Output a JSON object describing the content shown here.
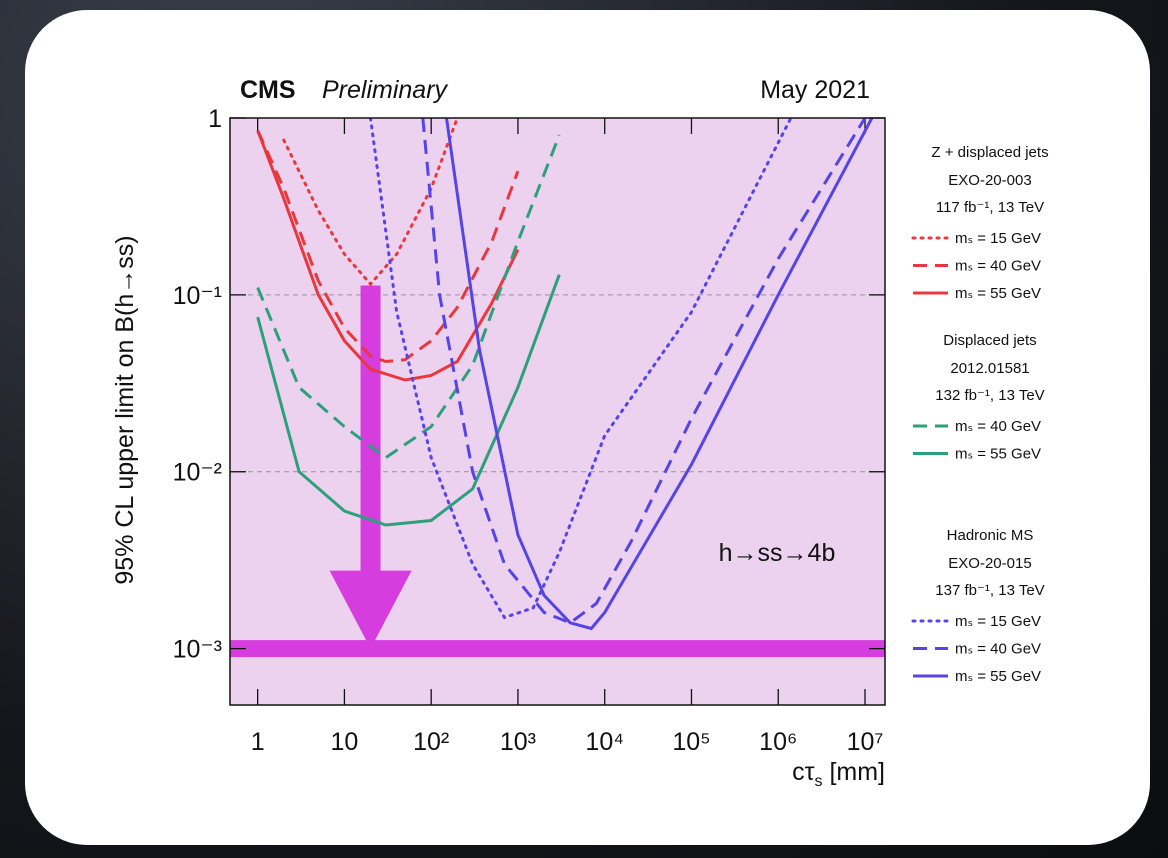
{
  "chart_data": {
    "type": "line",
    "annotations": {
      "cms": "CMS",
      "preliminary": "Preliminary",
      "date": "May 2021",
      "process": "h→ss→4b"
    },
    "x_label": [
      "cτ",
      "s",
      " [mm]"
    ],
    "y_label": "95% CL upper limit on B(h→ss)",
    "log_x": true,
    "log_y": true,
    "xlim": [
      0.48,
      17000000
    ],
    "ylim": [
      0.00048,
      1
    ],
    "xticks": [
      1,
      10,
      {
        "value": 100,
        "label": "10²"
      },
      {
        "value": 1000,
        "label": "10³"
      },
      {
        "value": 10000,
        "label": "10⁴"
      },
      {
        "value": 100000,
        "label": "10⁵"
      },
      {
        "value": 1000000,
        "label": "10⁶"
      },
      {
        "value": 10000000,
        "label": "10⁷"
      }
    ],
    "yticks": [
      {
        "value": 0.001,
        "label": "10⁻³"
      },
      {
        "value": 0.01,
        "label": "10⁻²"
      },
      {
        "value": 0.1,
        "label": "10⁻¹"
      },
      1
    ],
    "grid": true,
    "plot_background": "#ecd2ef",
    "limit": {
      "value": 0.001,
      "color": "#d63ddf"
    },
    "arrow": {
      "x": 20,
      "from": 0.113,
      "to": 0.001,
      "color": "#d63ddf"
    },
    "legend_groups": [
      {
        "title": "Z + displaced jets",
        "reference": "EXO-20-003",
        "luminosity": "117 fb⁻¹, 13 TeV"
      },
      {
        "title": "Displaced jets",
        "reference": "2012.01581",
        "luminosity": "132 fb⁻¹, 13 TeV"
      },
      {
        "title": "Hadronic MS",
        "reference": "EXO-20-015",
        "luminosity": "137 fb⁻¹, 13 TeV"
      }
    ],
    "series": [
      {
        "name": "mₛ = 15 GeV",
        "group": 0,
        "color": "#e8383d",
        "dash": "dotted",
        "x": [
          2,
          5,
          10,
          20,
          40,
          100,
          200
        ],
        "values": [
          0.75,
          0.3,
          0.17,
          0.115,
          0.17,
          0.4,
          1
        ]
      },
      {
        "name": "mₛ = 40 GeV",
        "group": 0,
        "color": "#e8383d",
        "dash": "dashed",
        "x": [
          1,
          2,
          5,
          10,
          20,
          30,
          50,
          100,
          200,
          500,
          1000
        ],
        "values": [
          0.85,
          0.4,
          0.12,
          0.065,
          0.045,
          0.042,
          0.043,
          0.055,
          0.085,
          0.2,
          0.5
        ]
      },
      {
        "name": "mₛ = 55 GeV",
        "group": 0,
        "color": "#e8383d",
        "dash": "solid",
        "x": [
          1,
          2,
          5,
          10,
          20,
          50,
          100,
          200,
          500,
          1000
        ],
        "values": [
          0.85,
          0.35,
          0.1,
          0.055,
          0.038,
          0.033,
          0.035,
          0.042,
          0.09,
          0.18
        ]
      },
      {
        "name": "mₛ = 40 GeV",
        "group": 1,
        "color": "#2ca07a",
        "dash": "dashed",
        "x": [
          1,
          3,
          10,
          30,
          100,
          300,
          1000,
          3000
        ],
        "values": [
          0.11,
          0.03,
          0.018,
          0.012,
          0.018,
          0.04,
          0.2,
          0.8
        ]
      },
      {
        "name": "mₛ = 55 GeV",
        "group": 1,
        "color": "#2ca07a",
        "dash": "solid",
        "x": [
          1,
          3,
          10,
          30,
          100,
          300,
          1000,
          3000
        ],
        "values": [
          0.075,
          0.01,
          0.006,
          0.005,
          0.0053,
          0.008,
          0.03,
          0.13
        ]
      },
      {
        "name": "mₛ = 15 GeV",
        "group": 2,
        "color": "#5544e6",
        "dash": "dotted",
        "x": [
          20,
          40,
          100,
          300,
          700,
          1500,
          3000,
          10000,
          100000,
          1400000
        ],
        "values": [
          1,
          0.08,
          0.012,
          0.003,
          0.0015,
          0.0017,
          0.0035,
          0.016,
          0.08,
          1
        ]
      },
      {
        "name": "mₛ = 40 GeV",
        "group": 2,
        "color": "#5544e6",
        "dash": "dashed",
        "x": [
          80,
          125,
          300,
          700,
          2000,
          4000,
          8000,
          20000,
          100000,
          1000000,
          10000000
        ],
        "values": [
          1,
          0.1,
          0.01,
          0.003,
          0.0016,
          0.0014,
          0.0018,
          0.004,
          0.02,
          0.16,
          1
        ]
      },
      {
        "name": "mₛ = 55 GeV",
        "group": 2,
        "color": "#5544e6",
        "dash": "solid",
        "x": [
          150,
          360,
          1000,
          2000,
          4000,
          7000,
          10000,
          100000,
          1000000,
          12000000
        ],
        "values": [
          1,
          0.049,
          0.0044,
          0.002,
          0.0014,
          0.0013,
          0.0016,
          0.011,
          0.1,
          1
        ]
      }
    ]
  }
}
